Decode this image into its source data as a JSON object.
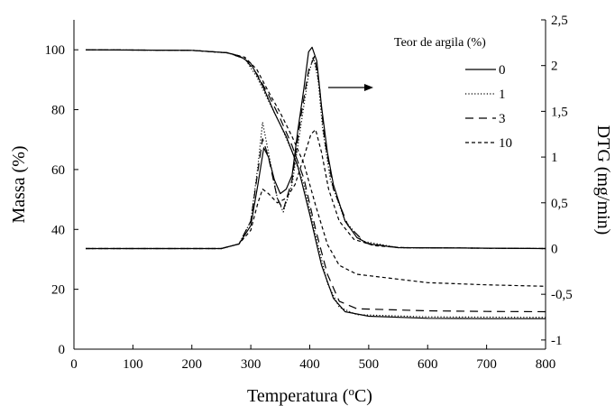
{
  "chart_data": {
    "type": "line",
    "xlabel": "Temperatura",
    "xlabel_unit_prefix": " (",
    "xlabel_unit_sup": "o",
    "xlabel_unit_suffix": "C)",
    "ylabel_left": "Massa (%)",
    "ylabel_right": "DTG (mg/min)",
    "xlim": [
      0,
      800
    ],
    "ylim_left": [
      0,
      110
    ],
    "ylim_right": [
      -1.1,
      2.5
    ],
    "x_ticks": [
      "0",
      "100",
      "200",
      "300",
      "400",
      "500",
      "600",
      "700",
      "800"
    ],
    "y_left_ticks": [
      "0",
      "20",
      "40",
      "60",
      "80",
      "100"
    ],
    "y_right_ticks": [
      "-1",
      "-0,5",
      "0",
      "0,5",
      "1",
      "1,5",
      "2",
      "2,5"
    ],
    "legend_title": "Teor de argila (%)",
    "legend_position": "top-right",
    "grid": false,
    "series": [
      {
        "name": "0",
        "style": "solid",
        "color": "#000000",
        "mass": [
          [
            20,
            100
          ],
          [
            200,
            99.8
          ],
          [
            260,
            99
          ],
          [
            280,
            98
          ],
          [
            300,
            95.5
          ],
          [
            320,
            88
          ],
          [
            340,
            79
          ],
          [
            360,
            71
          ],
          [
            380,
            61
          ],
          [
            400,
            45
          ],
          [
            420,
            28
          ],
          [
            440,
            17
          ],
          [
            460,
            12.5
          ],
          [
            500,
            11
          ],
          [
            600,
            10.3
          ],
          [
            700,
            10.2
          ],
          [
            800,
            10.2
          ]
        ],
        "dtg": [
          [
            20,
            0
          ],
          [
            250,
            0
          ],
          [
            280,
            0.05
          ],
          [
            300,
            0.25
          ],
          [
            312,
            0.7
          ],
          [
            322,
            1.1
          ],
          [
            330,
            1.0
          ],
          [
            340,
            0.75
          ],
          [
            350,
            0.6
          ],
          [
            360,
            0.65
          ],
          [
            370,
            0.8
          ],
          [
            380,
            1.3
          ],
          [
            390,
            1.75
          ],
          [
            398,
            2.15
          ],
          [
            404,
            2.2
          ],
          [
            412,
            2.05
          ],
          [
            420,
            1.55
          ],
          [
            430,
            1.05
          ],
          [
            440,
            0.7
          ],
          [
            460,
            0.3
          ],
          [
            480,
            0.12
          ],
          [
            500,
            0.05
          ],
          [
            550,
            0.01
          ],
          [
            800,
            0
          ]
        ]
      },
      {
        "name": "1",
        "style": "dotted",
        "color": "#000000",
        "mass": [
          [
            20,
            100
          ],
          [
            200,
            99.8
          ],
          [
            260,
            99
          ],
          [
            290,
            97
          ],
          [
            310,
            91
          ],
          [
            330,
            83
          ],
          [
            350,
            75
          ],
          [
            370,
            66
          ],
          [
            390,
            55
          ],
          [
            410,
            38
          ],
          [
            430,
            22
          ],
          [
            450,
            14
          ],
          [
            480,
            11.5
          ],
          [
            600,
            10.8
          ],
          [
            700,
            10.7
          ],
          [
            800,
            10.6
          ]
        ],
        "dtg": [
          [
            20,
            0
          ],
          [
            250,
            0
          ],
          [
            280,
            0.05
          ],
          [
            300,
            0.3
          ],
          [
            312,
            0.9
          ],
          [
            320,
            1.38
          ],
          [
            330,
            1.05
          ],
          [
            345,
            0.55
          ],
          [
            355,
            0.4
          ],
          [
            370,
            0.7
          ],
          [
            385,
            1.35
          ],
          [
            398,
            1.9
          ],
          [
            406,
            2.1
          ],
          [
            414,
            1.85
          ],
          [
            422,
            1.3
          ],
          [
            435,
            0.75
          ],
          [
            460,
            0.3
          ],
          [
            490,
            0.08
          ],
          [
            550,
            0.01
          ],
          [
            800,
            0
          ]
        ]
      },
      {
        "name": "3",
        "style": "dashed",
        "color": "#000000",
        "mass": [
          [
            20,
            100
          ],
          [
            200,
            99.8
          ],
          [
            260,
            99
          ],
          [
            290,
            97
          ],
          [
            310,
            92
          ],
          [
            330,
            85
          ],
          [
            350,
            77
          ],
          [
            370,
            68
          ],
          [
            390,
            57
          ],
          [
            410,
            40
          ],
          [
            430,
            25
          ],
          [
            450,
            16
          ],
          [
            480,
            13.5
          ],
          [
            600,
            12.8
          ],
          [
            700,
            12.6
          ],
          [
            800,
            12.5
          ]
        ],
        "dtg": [
          [
            20,
            0
          ],
          [
            250,
            0
          ],
          [
            280,
            0.05
          ],
          [
            300,
            0.3
          ],
          [
            312,
            0.85
          ],
          [
            320,
            1.2
          ],
          [
            330,
            1.0
          ],
          [
            345,
            0.55
          ],
          [
            355,
            0.42
          ],
          [
            370,
            0.75
          ],
          [
            385,
            1.45
          ],
          [
            398,
            1.95
          ],
          [
            408,
            2.1
          ],
          [
            416,
            1.8
          ],
          [
            425,
            1.2
          ],
          [
            440,
            0.65
          ],
          [
            465,
            0.25
          ],
          [
            495,
            0.06
          ],
          [
            550,
            0.01
          ],
          [
            800,
            0
          ]
        ]
      },
      {
        "name": "10",
        "style": "short-dash",
        "color": "#000000",
        "mass": [
          [
            20,
            100
          ],
          [
            200,
            99.8
          ],
          [
            260,
            99
          ],
          [
            290,
            97.5
          ],
          [
            310,
            93.5
          ],
          [
            330,
            86
          ],
          [
            350,
            79
          ],
          [
            370,
            71
          ],
          [
            390,
            62
          ],
          [
            410,
            48
          ],
          [
            430,
            35
          ],
          [
            450,
            28
          ],
          [
            480,
            25
          ],
          [
            600,
            22.2
          ],
          [
            700,
            21.5
          ],
          [
            800,
            21.0
          ]
        ],
        "dtg": [
          [
            20,
            0
          ],
          [
            250,
            0
          ],
          [
            280,
            0.05
          ],
          [
            300,
            0.2
          ],
          [
            312,
            0.5
          ],
          [
            320,
            0.65
          ],
          [
            330,
            0.6
          ],
          [
            345,
            0.5
          ],
          [
            360,
            0.55
          ],
          [
            375,
            0.7
          ],
          [
            390,
            1.0
          ],
          [
            402,
            1.25
          ],
          [
            410,
            1.3
          ],
          [
            420,
            1.05
          ],
          [
            432,
            0.65
          ],
          [
            450,
            0.3
          ],
          [
            475,
            0.1
          ],
          [
            510,
            0.03
          ],
          [
            560,
            0.01
          ],
          [
            800,
            0
          ]
        ]
      }
    ],
    "annotation": "arrow pointing right from DTG peak"
  }
}
